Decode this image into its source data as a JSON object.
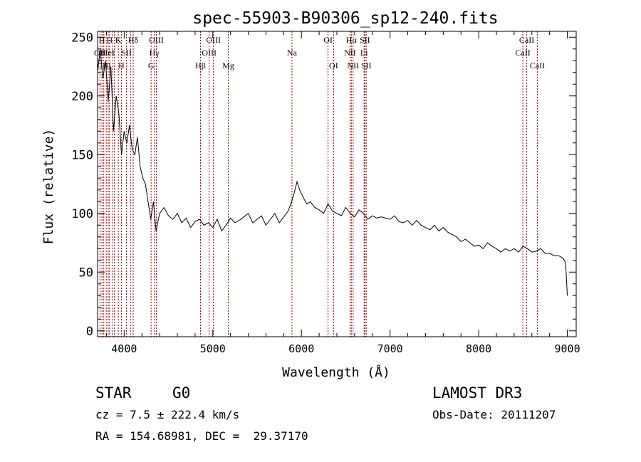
{
  "chart_data": {
    "type": "line",
    "title": "spec-55903-B90306_sp12-240.fits",
    "xlabel": "Wavelength (Å)",
    "ylabel": "Flux (relative)",
    "xlim": [
      3700,
      9100
    ],
    "ylim": [
      -5,
      255
    ],
    "xticks": [
      {
        "value": 4000,
        "label": "4000"
      },
      {
        "value": 5000,
        "label": "5000"
      },
      {
        "value": 6000,
        "label": "6000"
      },
      {
        "value": 7000,
        "label": "7000"
      },
      {
        "value": 8000,
        "label": "8000"
      },
      {
        "value": 9000,
        "label": "9000"
      }
    ],
    "yticks": [
      {
        "value": 0,
        "label": "0"
      },
      {
        "value": 50,
        "label": "50"
      },
      {
        "value": 100,
        "label": "100"
      },
      {
        "value": 150,
        "label": "150"
      },
      {
        "value": 200,
        "label": "200"
      },
      {
        "value": 250,
        "label": "250"
      }
    ],
    "grid": false,
    "line_color": "#000000",
    "marker_color": "#aa0000",
    "spectrum": {
      "x": [
        3700,
        3730,
        3760,
        3790,
        3820,
        3850,
        3880,
        3910,
        3940,
        3970,
        4000,
        4030,
        4060,
        4090,
        4120,
        4150,
        4180,
        4210,
        4240,
        4270,
        4300,
        4330,
        4360,
        4400,
        4450,
        4500,
        4550,
        4600,
        4650,
        4700,
        4750,
        4800,
        4850,
        4900,
        4950,
        5000,
        5050,
        5100,
        5150,
        5200,
        5250,
        5300,
        5350,
        5400,
        5450,
        5500,
        5550,
        5600,
        5650,
        5700,
        5750,
        5800,
        5850,
        5890,
        5920,
        5950,
        5980,
        6000,
        6030,
        6060,
        6100,
        6150,
        6200,
        6250,
        6300,
        6350,
        6400,
        6450,
        6500,
        6550,
        6600,
        6650,
        6700,
        6750,
        6800,
        6850,
        6900,
        6950,
        7000,
        7050,
        7100,
        7150,
        7200,
        7250,
        7300,
        7350,
        7400,
        7450,
        7500,
        7550,
        7600,
        7650,
        7700,
        7750,
        7800,
        7850,
        7900,
        7950,
        8000,
        8050,
        8100,
        8150,
        8200,
        8250,
        8300,
        8350,
        8400,
        8450,
        8500,
        8550,
        8600,
        8650,
        8700,
        8750,
        8800,
        8850,
        8900,
        8950,
        8980,
        9000
      ],
      "y": [
        220,
        240,
        215,
        230,
        195,
        225,
        170,
        200,
        185,
        150,
        170,
        160,
        175,
        155,
        150,
        165,
        140,
        130,
        125,
        110,
        95,
        110,
        85,
        100,
        105,
        98,
        95,
        100,
        92,
        96,
        88,
        93,
        95,
        90,
        92,
        88,
        95,
        85,
        90,
        96,
        92,
        94,
        97,
        100,
        92,
        95,
        98,
        90,
        95,
        100,
        92,
        97,
        102,
        110,
        118,
        127,
        120,
        117,
        112,
        108,
        110,
        105,
        103,
        100,
        108,
        102,
        100,
        98,
        105,
        100,
        97,
        103,
        100,
        95,
        98,
        96,
        97,
        96,
        95,
        98,
        93,
        92,
        94,
        90,
        94,
        90,
        88,
        86,
        90,
        85,
        88,
        84,
        82,
        80,
        76,
        78,
        75,
        72,
        73,
        70,
        75,
        72,
        70,
        67,
        70,
        68,
        70,
        67,
        72,
        70,
        67,
        68,
        70,
        66,
        66,
        64,
        64,
        62,
        58,
        30
      ]
    },
    "line_markers": [
      {
        "w": 3727,
        "label": "OII",
        "row": 2
      },
      {
        "w": 3750,
        "label": "H",
        "row": 1
      },
      {
        "w": 3770,
        "label": "OIII",
        "row": 3
      },
      {
        "w": 3798,
        "label": "",
        "row": 0
      },
      {
        "w": 3820,
        "label": "HeI",
        "row": 2
      },
      {
        "w": 3835,
        "label": "H",
        "row": 1
      },
      {
        "w": 3869,
        "label": "",
        "row": 0
      },
      {
        "w": 3889,
        "label": "",
        "row": 0
      },
      {
        "w": 3934,
        "label": "K",
        "row": 1
      },
      {
        "w": 3969,
        "label": "H",
        "row": 3
      },
      {
        "w": 4026,
        "label": "SII",
        "row": 2
      },
      {
        "w": 4072,
        "label": "",
        "row": 0
      },
      {
        "w": 4102,
        "label": "Hδ",
        "row": 1
      },
      {
        "w": 4304,
        "label": "G",
        "row": 3
      },
      {
        "w": 4340,
        "label": "Hγ",
        "row": 2
      },
      {
        "w": 4363,
        "label": "OIII",
        "row": 1
      },
      {
        "w": 4861,
        "label": "Hβ",
        "row": 3
      },
      {
        "w": 4959,
        "label": "OIII",
        "row": 2
      },
      {
        "w": 5007,
        "label": "OIII",
        "row": 1
      },
      {
        "w": 5175,
        "label": "Mg",
        "row": 3
      },
      {
        "w": 5893,
        "label": "Na",
        "row": 2
      },
      {
        "w": 6300,
        "label": "OI",
        "row": 1
      },
      {
        "w": 6363,
        "label": "OI",
        "row": 3
      },
      {
        "w": 6548,
        "label": "NII",
        "row": 2
      },
      {
        "w": 6563,
        "label": "Hα",
        "row": 1
      },
      {
        "w": 6583,
        "label": "NII",
        "row": 3
      },
      {
        "w": 6707,
        "label": "Li",
        "row": 2
      },
      {
        "w": 6716,
        "label": "SII",
        "row": 1
      },
      {
        "w": 6731,
        "label": "SII",
        "row": 3
      },
      {
        "w": 8498,
        "label": "CaII",
        "row": 2
      },
      {
        "w": 8542,
        "label": "CaII",
        "row": 1
      },
      {
        "w": 8662,
        "label": "CaII",
        "row": 3
      }
    ]
  },
  "info": {
    "object_class": "STAR",
    "subclass": "G0",
    "survey": "LAMOST DR3",
    "cz": "cz = 7.5 ± 222.4 km/s",
    "obs_date": "Obs-Date: 20111207",
    "coords": "RA = 154.68981, DEC =  29.37170"
  }
}
